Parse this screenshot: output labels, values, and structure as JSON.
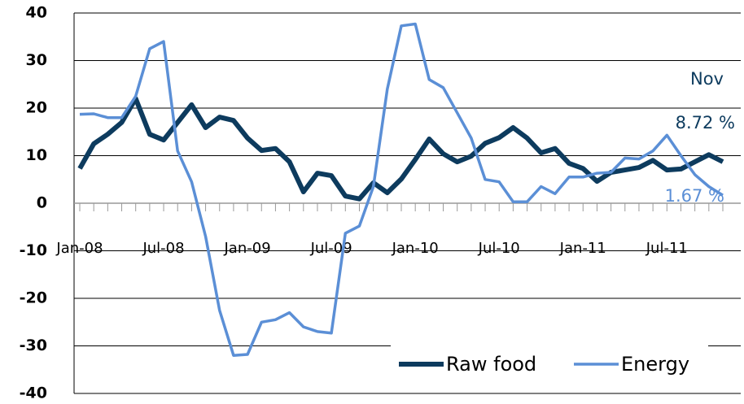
{
  "chart_data": {
    "type": "line",
    "categories": [
      "Jan-08",
      null,
      null,
      null,
      null,
      null,
      "Jul-08",
      null,
      null,
      null,
      null,
      null,
      "Jan-09",
      null,
      null,
      null,
      null,
      null,
      "Jul-09",
      null,
      null,
      null,
      null,
      null,
      "Jan-10",
      null,
      null,
      null,
      null,
      null,
      "Jul-10",
      null,
      null,
      null,
      null,
      null,
      "Jan-11",
      null,
      null,
      null,
      null,
      null,
      "Jul-11",
      null,
      null,
      null,
      null
    ],
    "series": [
      {
        "name": "Raw food",
        "color": "#0d3b5e",
        "values": [
          7.3,
          12.5,
          14.5,
          17,
          22,
          14.5,
          13.3,
          17,
          20.7,
          15.9,
          18.1,
          17.4,
          13.7,
          11.1,
          11.5,
          8.7,
          2.4,
          6.3,
          5.8,
          1.5,
          0.9,
          4.3,
          2.2,
          5.1,
          9.2,
          13.5,
          10.4,
          8.7,
          9.9,
          12.6,
          13.8,
          15.9,
          13.7,
          10.6,
          11.5,
          8.4,
          7.3,
          4.6,
          6.5,
          7,
          7.5,
          9,
          7,
          7.2,
          8.7,
          10.2,
          8.72
        ],
        "value_labels": [
          null,
          null,
          null,
          null,
          null,
          null,
          null,
          null,
          null,
          null,
          null,
          null,
          null,
          null,
          null,
          null,
          null,
          null,
          null,
          null,
          null,
          null,
          null,
          null,
          null,
          null,
          null,
          null,
          null,
          null,
          null,
          null,
          null,
          null,
          null,
          null,
          null,
          null,
          null,
          null,
          null,
          null,
          null,
          null,
          null,
          null,
          "8.72 %"
        ]
      },
      {
        "name": "Energy",
        "color": "#5b8fd6",
        "values": [
          18.7,
          18.8,
          18,
          18,
          22.5,
          32.5,
          34,
          11,
          4.5,
          -7,
          -22.5,
          -32,
          -31.8,
          -25,
          -24.5,
          -23,
          -26,
          -27,
          -27.3,
          -6.3,
          -4.8,
          3.5,
          24,
          37.3,
          37.7,
          26,
          24.3,
          19,
          13.7,
          5,
          4.5,
          0.3,
          0.3,
          3.5,
          2,
          5.5,
          5.5,
          6.3,
          6.5,
          9.5,
          9.3,
          11,
          14.3,
          10,
          6,
          3.5,
          1.67
        ],
        "value_labels": [
          null,
          null,
          null,
          null,
          null,
          null,
          null,
          null,
          null,
          null,
          null,
          null,
          null,
          null,
          null,
          null,
          null,
          null,
          null,
          null,
          null,
          null,
          null,
          null,
          null,
          null,
          null,
          null,
          null,
          null,
          null,
          null,
          null,
          null,
          null,
          null,
          null,
          null,
          null,
          null,
          null,
          null,
          null,
          null,
          null,
          null,
          "1.67 %"
        ]
      }
    ],
    "annotations": [
      "Nov"
    ],
    "ylim": [
      -40,
      40
    ],
    "yticks": [
      -40,
      -30,
      -20,
      -10,
      0,
      10,
      20,
      30,
      40
    ],
    "grid": true,
    "legend": "lower right"
  }
}
